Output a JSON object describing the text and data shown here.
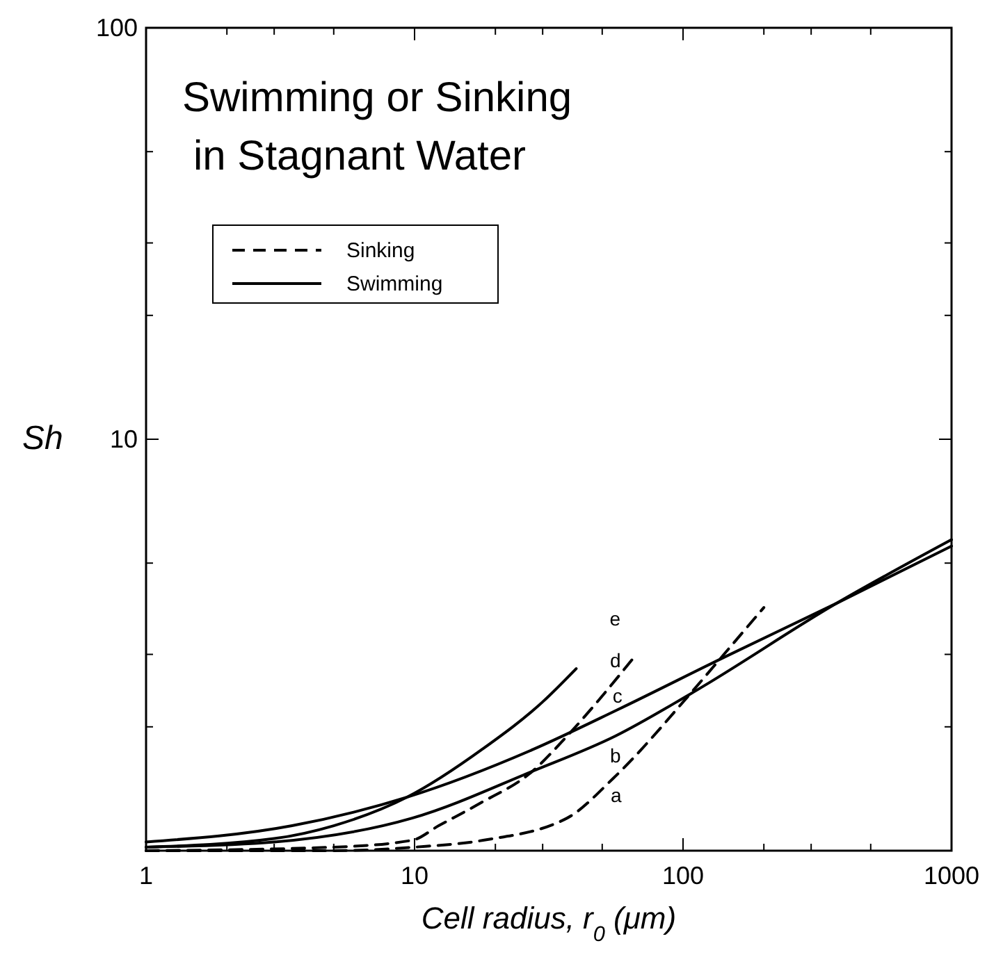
{
  "chart_data": {
    "type": "line",
    "title": "Swimming or Sinking\nin Stagnant Water",
    "xlabel": "Cell radius, r$_{0}$  (μm)",
    "ylabel": "Sh",
    "log": "xy",
    "xlim": [
      1,
      1000
    ],
    "ylim": [
      1,
      100
    ],
    "xticks": [
      1,
      {
        "value": 2,
        "label": null
      },
      {
        "value": 3,
        "label": null
      },
      {
        "value": 5,
        "label": null
      },
      10,
      {
        "value": 20,
        "label": null
      },
      {
        "value": 30,
        "label": null
      },
      {
        "value": 50,
        "label": null
      },
      100,
      {
        "value": 200,
        "label": null
      },
      {
        "value": 300,
        "label": null
      },
      {
        "value": 500,
        "label": null
      },
      1000
    ],
    "yticks": [
      {
        "value": 2,
        "label": null
      },
      {
        "value": 3,
        "label": null
      },
      {
        "value": 5,
        "label": null
      },
      10,
      {
        "value": 20,
        "label": null
      },
      {
        "value": 30,
        "label": null
      },
      {
        "value": 50,
        "label": null
      },
      100
    ],
    "grid": false,
    "legend": "top left",
    "marker": "none",
    "series": [
      {
        "name": "Sinking",
        "color": "#000000",
        "line_style": "dashed",
        "x": [
          1,
          5,
          10,
          18,
          37,
          55,
          106,
          142,
          200
        ],
        "values": [
          1.0,
          1.0,
          1.02,
          1.06,
          1.2,
          1.5,
          2.4,
          3.0,
          3.9
        ]
      },
      {
        "name": "Swimming",
        "color": "#000000",
        "line_style": "solid",
        "x": [
          1,
          3,
          9.8,
          27.5,
          56,
          106,
          375,
          1000
        ],
        "values": [
          1.02,
          1.05,
          1.2,
          1.56,
          1.9,
          2.4,
          4.0,
          5.7
        ]
      },
      {
        "color": "#000000",
        "line_style": "solid",
        "x": [
          1,
          3.5,
          9.4,
          27.5,
          57,
          142,
          375,
          1000
        ],
        "values": [
          1.05,
          1.15,
          1.35,
          1.76,
          2.2,
          2.95,
          4.0,
          5.5
        ]
      },
      {
        "color": "#000000",
        "line_style": "dashed",
        "x": [
          1,
          5,
          9.8,
          12.3,
          17.4,
          27.5,
          37,
          67
        ],
        "values": [
          1.0,
          1.02,
          1.06,
          1.15,
          1.3,
          1.56,
          1.9,
          3.0
        ]
      },
      {
        "color": "#000000",
        "line_style": "solid",
        "x": [
          1,
          3,
          5,
          9.4,
          18,
          30,
          40
        ],
        "values": [
          1.02,
          1.07,
          1.15,
          1.35,
          1.77,
          2.3,
          2.77
        ]
      }
    ],
    "annotations": [
      {
        "text": "a",
        "x": 55,
        "y": 1.5
      },
      {
        "text": "b",
        "x": 56,
        "y": 1.9
      },
      {
        "text": "c",
        "x": 57,
        "y": 2.2
      },
      {
        "text": "d",
        "x": 67,
        "y": 3.0
      },
      {
        "text": "e",
        "x": 40,
        "y": 2.77
      }
    ]
  }
}
